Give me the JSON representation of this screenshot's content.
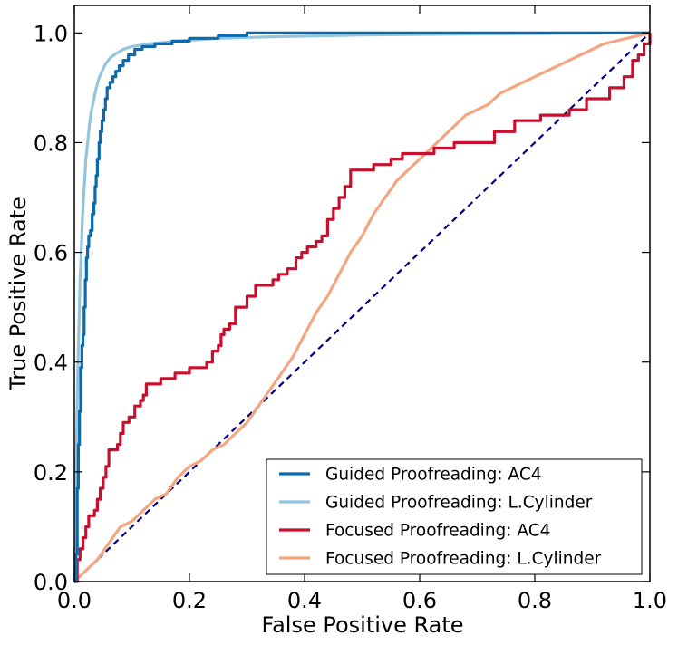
{
  "chart_data": {
    "type": "line",
    "title": "",
    "xlabel": "False Positive Rate",
    "ylabel": "True Positive Rate",
    "xlim": [
      0.0,
      1.0
    ],
    "ylim": [
      0.0,
      1.05
    ],
    "xticks": [
      0.0,
      0.2,
      0.4,
      0.6,
      0.8,
      1.0
    ],
    "yticks": [
      0.0,
      0.2,
      0.4,
      0.6,
      0.8,
      1.0
    ],
    "xtick_labels": [
      "0.0",
      "0.2",
      "0.4",
      "0.6",
      "0.8",
      "1.0"
    ],
    "ytick_labels": [
      "0.0",
      "0.2",
      "0.4",
      "0.6",
      "0.8",
      "1.0"
    ],
    "legend_position": "bottom-right",
    "reference_line": {
      "name": "chance",
      "color": "#000080",
      "dashed": true,
      "points": [
        [
          0.0,
          0.0
        ],
        [
          1.0,
          1.0
        ]
      ]
    },
    "series": [
      {
        "name": "Guided Proofreading: AC4",
        "color": "#0a6aad",
        "step": true,
        "points": [
          [
            0.0,
            0.0
          ],
          [
            0.003,
            0.05
          ],
          [
            0.005,
            0.17
          ],
          [
            0.007,
            0.25
          ],
          [
            0.009,
            0.31
          ],
          [
            0.011,
            0.39
          ],
          [
            0.013,
            0.43
          ],
          [
            0.015,
            0.45
          ],
          [
            0.017,
            0.5
          ],
          [
            0.019,
            0.55
          ],
          [
            0.021,
            0.59
          ],
          [
            0.023,
            0.61
          ],
          [
            0.025,
            0.63
          ],
          [
            0.028,
            0.64
          ],
          [
            0.031,
            0.67
          ],
          [
            0.034,
            0.69
          ],
          [
            0.036,
            0.72
          ],
          [
            0.038,
            0.74
          ],
          [
            0.04,
            0.77
          ],
          [
            0.043,
            0.8
          ],
          [
            0.045,
            0.82
          ],
          [
            0.048,
            0.84
          ],
          [
            0.051,
            0.86
          ],
          [
            0.054,
            0.88
          ],
          [
            0.057,
            0.9
          ],
          [
            0.062,
            0.91
          ],
          [
            0.067,
            0.92
          ],
          [
            0.072,
            0.93
          ],
          [
            0.078,
            0.94
          ],
          [
            0.085,
            0.95
          ],
          [
            0.094,
            0.96
          ],
          [
            0.105,
            0.97
          ],
          [
            0.118,
            0.975
          ],
          [
            0.14,
            0.98
          ],
          [
            0.17,
            0.985
          ],
          [
            0.2,
            0.99
          ],
          [
            0.25,
            0.995
          ],
          [
            0.3,
            1.0
          ],
          [
            0.5,
            1.0
          ],
          [
            1.0,
            1.0
          ]
        ]
      },
      {
        "name": "Guided Proofreading: L.Cylinder",
        "color": "#92c5de",
        "step": false,
        "points": [
          [
            0.0,
            0.0
          ],
          [
            0.002,
            0.12
          ],
          [
            0.004,
            0.26
          ],
          [
            0.006,
            0.38
          ],
          [
            0.008,
            0.47
          ],
          [
            0.01,
            0.55
          ],
          [
            0.012,
            0.6
          ],
          [
            0.014,
            0.66
          ],
          [
            0.016,
            0.7
          ],
          [
            0.018,
            0.73
          ],
          [
            0.02,
            0.77
          ],
          [
            0.023,
            0.8
          ],
          [
            0.026,
            0.83
          ],
          [
            0.029,
            0.855
          ],
          [
            0.033,
            0.875
          ],
          [
            0.037,
            0.895
          ],
          [
            0.042,
            0.915
          ],
          [
            0.048,
            0.93
          ],
          [
            0.055,
            0.945
          ],
          [
            0.063,
            0.955
          ],
          [
            0.072,
            0.962
          ],
          [
            0.085,
            0.97
          ],
          [
            0.1,
            0.975
          ],
          [
            0.13,
            0.98
          ],
          [
            0.18,
            0.985
          ],
          [
            0.25,
            0.99
          ],
          [
            0.35,
            0.993
          ],
          [
            0.5,
            0.996
          ],
          [
            0.7,
            0.998
          ],
          [
            1.0,
            1.0
          ]
        ]
      },
      {
        "name": "Focused Proofreading: AC4",
        "color": "#c8102e",
        "step": true,
        "points": [
          [
            0.0,
            0.0
          ],
          [
            0.005,
            0.04
          ],
          [
            0.01,
            0.06
          ],
          [
            0.015,
            0.08
          ],
          [
            0.02,
            0.1
          ],
          [
            0.025,
            0.12
          ],
          [
            0.035,
            0.13
          ],
          [
            0.04,
            0.15
          ],
          [
            0.045,
            0.17
          ],
          [
            0.05,
            0.19
          ],
          [
            0.055,
            0.21
          ],
          [
            0.06,
            0.24
          ],
          [
            0.075,
            0.25
          ],
          [
            0.08,
            0.27
          ],
          [
            0.085,
            0.29
          ],
          [
            0.095,
            0.3
          ],
          [
            0.105,
            0.32
          ],
          [
            0.115,
            0.33
          ],
          [
            0.12,
            0.34
          ],
          [
            0.125,
            0.36
          ],
          [
            0.15,
            0.37
          ],
          [
            0.175,
            0.38
          ],
          [
            0.2,
            0.39
          ],
          [
            0.23,
            0.4
          ],
          [
            0.24,
            0.42
          ],
          [
            0.25,
            0.43
          ],
          [
            0.255,
            0.45
          ],
          [
            0.26,
            0.46
          ],
          [
            0.27,
            0.47
          ],
          [
            0.28,
            0.5
          ],
          [
            0.3,
            0.52
          ],
          [
            0.315,
            0.54
          ],
          [
            0.345,
            0.55
          ],
          [
            0.355,
            0.56
          ],
          [
            0.37,
            0.57
          ],
          [
            0.385,
            0.59
          ],
          [
            0.395,
            0.6
          ],
          [
            0.405,
            0.61
          ],
          [
            0.42,
            0.62
          ],
          [
            0.43,
            0.63
          ],
          [
            0.44,
            0.66
          ],
          [
            0.45,
            0.68
          ],
          [
            0.46,
            0.7
          ],
          [
            0.47,
            0.72
          ],
          [
            0.48,
            0.75
          ],
          [
            0.52,
            0.76
          ],
          [
            0.55,
            0.77
          ],
          [
            0.57,
            0.78
          ],
          [
            0.625,
            0.79
          ],
          [
            0.66,
            0.8
          ],
          [
            0.73,
            0.82
          ],
          [
            0.765,
            0.84
          ],
          [
            0.81,
            0.85
          ],
          [
            0.86,
            0.86
          ],
          [
            0.89,
            0.88
          ],
          [
            0.93,
            0.9
          ],
          [
            0.955,
            0.92
          ],
          [
            0.97,
            0.95
          ],
          [
            0.98,
            0.96
          ],
          [
            0.99,
            0.98
          ],
          [
            1.0,
            1.0
          ]
        ]
      },
      {
        "name": "Focused Proofreading: L.Cylinder",
        "color": "#f4a582",
        "step": false,
        "points": [
          [
            0.0,
            0.0
          ],
          [
            0.02,
            0.02
          ],
          [
            0.04,
            0.04
          ],
          [
            0.06,
            0.07
          ],
          [
            0.08,
            0.1
          ],
          [
            0.1,
            0.11
          ],
          [
            0.12,
            0.13
          ],
          [
            0.14,
            0.15
          ],
          [
            0.16,
            0.16
          ],
          [
            0.18,
            0.19
          ],
          [
            0.2,
            0.21
          ],
          [
            0.22,
            0.22
          ],
          [
            0.24,
            0.24
          ],
          [
            0.26,
            0.25
          ],
          [
            0.28,
            0.27
          ],
          [
            0.3,
            0.29
          ],
          [
            0.32,
            0.32
          ],
          [
            0.34,
            0.35
          ],
          [
            0.36,
            0.38
          ],
          [
            0.38,
            0.41
          ],
          [
            0.4,
            0.45
          ],
          [
            0.42,
            0.49
          ],
          [
            0.44,
            0.52
          ],
          [
            0.46,
            0.56
          ],
          [
            0.48,
            0.6
          ],
          [
            0.5,
            0.63
          ],
          [
            0.52,
            0.67
          ],
          [
            0.54,
            0.7
          ],
          [
            0.56,
            0.73
          ],
          [
            0.58,
            0.75
          ],
          [
            0.6,
            0.77
          ],
          [
            0.62,
            0.79
          ],
          [
            0.64,
            0.81
          ],
          [
            0.66,
            0.83
          ],
          [
            0.68,
            0.85
          ],
          [
            0.7,
            0.86
          ],
          [
            0.72,
            0.87
          ],
          [
            0.74,
            0.89
          ],
          [
            0.76,
            0.9
          ],
          [
            0.78,
            0.91
          ],
          [
            0.8,
            0.92
          ],
          [
            0.82,
            0.93
          ],
          [
            0.84,
            0.94
          ],
          [
            0.86,
            0.95
          ],
          [
            0.88,
            0.96
          ],
          [
            0.9,
            0.97
          ],
          [
            0.92,
            0.98
          ],
          [
            0.94,
            0.985
          ],
          [
            0.96,
            0.99
          ],
          [
            0.98,
            0.995
          ],
          [
            1.0,
            1.0
          ]
        ]
      }
    ]
  }
}
